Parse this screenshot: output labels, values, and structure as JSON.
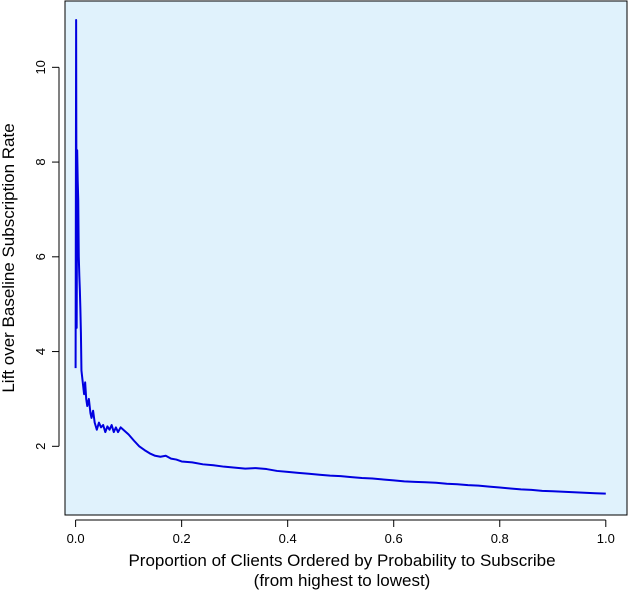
{
  "chart_data": {
    "type": "line",
    "title": "",
    "xlabel_line1": "Proportion of Clients Ordered by Probability to Subscribe",
    "xlabel_line2": "(from highest to lowest)",
    "ylabel": "Lift over Baseline Subscription Rate",
    "xlim": [
      -0.02,
      1.04
    ],
    "ylim": [
      0.55,
      11.4
    ],
    "x_ticks": [
      0.0,
      0.2,
      0.4,
      0.6,
      0.8,
      1.0
    ],
    "x_tick_labels": [
      "0.0",
      "0.2",
      "0.4",
      "0.6",
      "0.8",
      "1.0"
    ],
    "y_ticks": [
      2,
      4,
      6,
      8,
      10
    ],
    "y_tick_labels": [
      "2",
      "4",
      "6",
      "8",
      "10"
    ],
    "grid": false,
    "background_color": "#e0f2fc",
    "line_color": "#0000e0",
    "series": [
      {
        "x": [
          0.0,
          0.001,
          0.002,
          0.003,
          0.004,
          0.005,
          0.006,
          0.007,
          0.008,
          0.009,
          0.01,
          0.011,
          0.012,
          0.014,
          0.016,
          0.018,
          0.02,
          0.022,
          0.025,
          0.028,
          0.03,
          0.033,
          0.036,
          0.04,
          0.044,
          0.048,
          0.052,
          0.056,
          0.06,
          0.064,
          0.068,
          0.072,
          0.076,
          0.08,
          0.085,
          0.09,
          0.095,
          0.1,
          0.11,
          0.12,
          0.13,
          0.14,
          0.15,
          0.16,
          0.17,
          0.18,
          0.19,
          0.2,
          0.22,
          0.24,
          0.26,
          0.28,
          0.3,
          0.32,
          0.34,
          0.36,
          0.38,
          0.4,
          0.42,
          0.44,
          0.46,
          0.48,
          0.5,
          0.52,
          0.54,
          0.56,
          0.58,
          0.6,
          0.62,
          0.64,
          0.66,
          0.68,
          0.7,
          0.72,
          0.74,
          0.76,
          0.78,
          0.8,
          0.82,
          0.84,
          0.86,
          0.88,
          0.9,
          0.92,
          0.94,
          0.96,
          0.98,
          1.0
        ],
        "y": [
          3.65,
          11.0,
          4.5,
          8.25,
          7.6,
          7.2,
          6.0,
          5.6,
          5.3,
          4.9,
          4.4,
          3.6,
          3.5,
          3.3,
          3.1,
          3.35,
          3.0,
          2.85,
          3.0,
          2.7,
          2.6,
          2.75,
          2.5,
          2.35,
          2.5,
          2.4,
          2.45,
          2.3,
          2.42,
          2.35,
          2.45,
          2.3,
          2.4,
          2.3,
          2.4,
          2.35,
          2.3,
          2.25,
          2.12,
          2.0,
          1.92,
          1.85,
          1.8,
          1.78,
          1.8,
          1.74,
          1.72,
          1.68,
          1.66,
          1.62,
          1.6,
          1.57,
          1.55,
          1.53,
          1.54,
          1.52,
          1.48,
          1.46,
          1.44,
          1.42,
          1.4,
          1.38,
          1.37,
          1.35,
          1.33,
          1.32,
          1.3,
          1.28,
          1.26,
          1.25,
          1.24,
          1.23,
          1.21,
          1.2,
          1.18,
          1.17,
          1.15,
          1.13,
          1.11,
          1.09,
          1.08,
          1.06,
          1.05,
          1.04,
          1.03,
          1.02,
          1.01,
          1.0
        ]
      }
    ]
  }
}
